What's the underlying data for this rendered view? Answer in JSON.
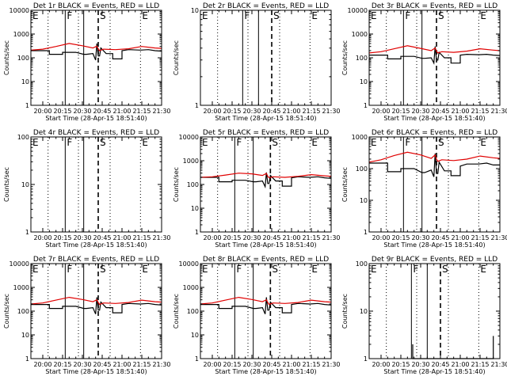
{
  "chart_data": [
    {
      "type": "line",
      "title": "Det 1r BLACK = Events, RED = LLD",
      "xlabel": "Start Time (28-Apr-15 18:51:40)",
      "ylabel": "Counts/sec",
      "yscale": "log",
      "ylim": [
        1,
        10000
      ],
      "xlim": [
        "19:51",
        "21:30"
      ],
      "x_ticks": [
        "20:00",
        "20:15",
        "20:30",
        "20:45",
        "21:00",
        "21:15",
        "21:30"
      ],
      "y_ticks": [
        "1",
        "10",
        "100",
        "1000",
        "10000"
      ],
      "phase_labels": [
        "E",
        "F",
        "S",
        "E"
      ],
      "solid_lines": [
        "20:17",
        "20:31"
      ],
      "dashed_lines": [
        "20:42"
      ],
      "dotted_lines": [
        "20:04",
        "20:27",
        "20:51",
        "21:14"
      ],
      "series": [
        {
          "name": "BLACK",
          "color": "#000000",
          "x": [
            "19:51",
            "20:00",
            "20:05",
            "20:05",
            "20:15",
            "20:15",
            "20:20",
            "20:25",
            "20:31",
            "20:33",
            "20:38",
            "20:40",
            "20:41",
            "20:42",
            "20:43",
            "20:44",
            "20:48",
            "20:51",
            "20:53",
            "20:53",
            "21:00",
            "21:00",
            "21:05",
            "21:14",
            "21:20",
            "21:25",
            "21:30"
          ],
          "y": [
            200,
            200,
            200,
            140,
            140,
            170,
            170,
            170,
            140,
            140,
            150,
            80,
            400,
            120,
            120,
            260,
            150,
            150,
            150,
            90,
            90,
            200,
            220,
            210,
            220,
            200,
            190
          ]
        },
        {
          "name": "RED",
          "color": "#e00000",
          "x": [
            "19:51",
            "20:00",
            "20:10",
            "20:20",
            "20:30",
            "20:38",
            "20:41",
            "20:42",
            "20:43",
            "20:46",
            "20:55",
            "21:05",
            "21:15",
            "21:25",
            "21:30"
          ],
          "y": [
            210,
            230,
            300,
            400,
            320,
            260,
            310,
            240,
            200,
            230,
            220,
            240,
            300,
            260,
            250
          ]
        }
      ]
    },
    {
      "type": "line",
      "title": "Det 2r BLACK = Events, RED = LLD",
      "xlabel": "Start Time (28-Apr-15 18:51:40)",
      "ylabel": "Counts/sec",
      "yscale": "log",
      "ylim": [
        1,
        10
      ],
      "xlim": [
        "19:51",
        "21:30"
      ],
      "x_ticks": [
        "20:00",
        "20:15",
        "20:30",
        "20:45",
        "21:00",
        "21:15",
        "21:30"
      ],
      "y_ticks": [
        "1",
        "10"
      ],
      "phase_labels": [
        "E",
        "F",
        "S",
        "E"
      ],
      "solid_lines": [
        "20:23",
        "20:35"
      ],
      "dashed_lines": [
        "20:45"
      ],
      "dotted_lines": [
        "20:04",
        "20:27",
        "20:51",
        "21:14"
      ],
      "series": []
    },
    {
      "type": "line",
      "title": "Det 3r BLACK = Events, RED = LLD",
      "xlabel": "Start Time (28-Apr-15 18:51:40)",
      "ylabel": "Counts/sec",
      "yscale": "log",
      "ylim": [
        1,
        10000
      ],
      "xlim": [
        "19:51",
        "21:30"
      ],
      "x_ticks": [
        "20:00",
        "20:15",
        "20:30",
        "20:45",
        "21:00",
        "21:15",
        "21:30"
      ],
      "y_ticks": [
        "1",
        "10",
        "100",
        "1000",
        "10000"
      ],
      "phase_labels": [
        "E",
        "F",
        "S",
        "E"
      ],
      "solid_lines": [
        "20:17",
        "20:31"
      ],
      "dashed_lines": [
        "20:42"
      ],
      "dotted_lines": [
        "20:04",
        "20:27",
        "20:51",
        "21:14"
      ],
      "series": [
        {
          "name": "BLACK",
          "color": "#000000",
          "x": [
            "19:51",
            "20:00",
            "20:05",
            "20:05",
            "20:15",
            "20:15",
            "20:20",
            "20:25",
            "20:31",
            "20:33",
            "20:38",
            "20:40",
            "20:41",
            "20:42",
            "20:43",
            "20:44",
            "20:48",
            "20:51",
            "20:53",
            "20:53",
            "21:00",
            "21:00",
            "21:05",
            "21:14",
            "21:20",
            "21:25",
            "21:30"
          ],
          "y": [
            130,
            130,
            130,
            90,
            90,
            115,
            115,
            115,
            95,
            95,
            100,
            60,
            300,
            80,
            80,
            170,
            100,
            100,
            100,
            60,
            60,
            130,
            140,
            135,
            140,
            130,
            125
          ]
        },
        {
          "name": "RED",
          "color": "#e00000",
          "x": [
            "19:51",
            "20:00",
            "20:10",
            "20:20",
            "20:30",
            "20:38",
            "20:41",
            "20:42",
            "20:43",
            "20:46",
            "20:55",
            "21:05",
            "21:15",
            "21:25",
            "21:30"
          ],
          "y": [
            160,
            180,
            240,
            320,
            250,
            200,
            260,
            190,
            160,
            180,
            170,
            190,
            240,
            210,
            200
          ]
        }
      ]
    },
    {
      "type": "line",
      "title": "Det 4r BLACK = Events, RED = LLD",
      "xlabel": "Start Time (28-Apr-15 18:51:40)",
      "ylabel": "Counts/sec",
      "yscale": "log",
      "ylim": [
        1,
        100
      ],
      "xlim": [
        "19:51",
        "21:30"
      ],
      "x_ticks": [
        "20:00",
        "20:15",
        "20:30",
        "20:45",
        "21:00",
        "21:15",
        "21:30"
      ],
      "y_ticks": [
        "1",
        "10",
        "100"
      ],
      "phase_labels": [
        "E",
        "F",
        "S",
        "E"
      ],
      "solid_lines": [
        "20:17",
        "20:31"
      ],
      "dashed_lines": [
        "20:42"
      ],
      "dotted_lines": [
        "20:04",
        "20:27",
        "20:51",
        "21:14"
      ],
      "series": []
    },
    {
      "type": "line",
      "title": "Det 5r BLACK = Events, RED = LLD",
      "xlabel": "Start Time (28-Apr-15 18:51:40)",
      "ylabel": "Counts/sec",
      "yscale": "log",
      "ylim": [
        1,
        10000
      ],
      "xlim": [
        "19:51",
        "21:30"
      ],
      "x_ticks": [
        "20:00",
        "20:15",
        "20:30",
        "20:45",
        "21:00",
        "21:15",
        "21:30"
      ],
      "y_ticks": [
        "1",
        "10",
        "100",
        "1000",
        "10000"
      ],
      "phase_labels": [
        "E",
        "F",
        "S",
        "E"
      ],
      "solid_lines": [
        "20:17",
        "20:31"
      ],
      "dashed_lines": [
        "20:44"
      ],
      "dotted_lines": [
        "20:04",
        "20:27",
        "20:51",
        "21:14"
      ],
      "series": [
        {
          "name": "BLACK",
          "color": "#000000",
          "x": [
            "19:51",
            "20:00",
            "20:05",
            "20:05",
            "20:15",
            "20:15",
            "20:20",
            "20:25",
            "20:31",
            "20:33",
            "20:38",
            "20:40",
            "20:41",
            "20:42",
            "20:43",
            "20:44",
            "20:48",
            "20:51",
            "20:53",
            "20:53",
            "21:00",
            "21:00",
            "21:05",
            "21:14",
            "21:20",
            "21:25",
            "21:30"
          ],
          "y": [
            200,
            200,
            200,
            130,
            130,
            150,
            150,
            150,
            130,
            130,
            140,
            80,
            320,
            110,
            110,
            240,
            140,
            140,
            140,
            85,
            85,
            190,
            210,
            200,
            210,
            190,
            180
          ]
        },
        {
          "name": "RED",
          "color": "#e00000",
          "x": [
            "19:51",
            "20:00",
            "20:10",
            "20:20",
            "20:30",
            "20:38",
            "20:41",
            "20:42",
            "20:43",
            "20:46",
            "20:55",
            "21:05",
            "21:15",
            "21:25",
            "21:30"
          ],
          "y": [
            200,
            210,
            250,
            300,
            280,
            240,
            290,
            220,
            190,
            210,
            200,
            220,
            260,
            230,
            220
          ]
        }
      ]
    },
    {
      "type": "line",
      "title": "Det 6r BLACK = Events, RED = LLD",
      "xlabel": "Start Time (28-Apr-15 18:51:40)",
      "ylabel": "Counts/sec",
      "yscale": "log",
      "ylim": [
        1,
        1000
      ],
      "xlim": [
        "19:51",
        "21:30"
      ],
      "x_ticks": [
        "20:00",
        "20:15",
        "20:30",
        "20:45",
        "21:00",
        "21:15",
        "21:30"
      ],
      "y_ticks": [
        "1",
        "10",
        "100",
        "1000"
      ],
      "phase_labels": [
        "E",
        "F",
        "S",
        "E"
      ],
      "solid_lines": [
        "20:17",
        "20:31"
      ],
      "dashed_lines": [
        "20:42"
      ],
      "dotted_lines": [
        "20:04",
        "20:27",
        "20:51",
        "21:14"
      ],
      "series": [
        {
          "name": "BLACK",
          "color": "#000000",
          "x": [
            "19:51",
            "20:00",
            "20:05",
            "20:05",
            "20:15",
            "20:15",
            "20:20",
            "20:25",
            "20:31",
            "20:33",
            "20:38",
            "20:40",
            "20:41",
            "20:42",
            "20:43",
            "20:44",
            "20:48",
            "20:51",
            "20:53",
            "20:53",
            "21:00",
            "21:00",
            "21:05",
            "21:14",
            "21:20",
            "21:25",
            "21:30"
          ],
          "y": [
            150,
            150,
            150,
            80,
            80,
            100,
            100,
            100,
            75,
            75,
            90,
            55,
            300,
            70,
            70,
            160,
            85,
            85,
            85,
            60,
            60,
            120,
            140,
            140,
            150,
            130,
            130
          ]
        },
        {
          "name": "RED",
          "color": "#e00000",
          "x": [
            "19:51",
            "20:00",
            "20:10",
            "20:20",
            "20:30",
            "20:38",
            "20:41",
            "20:42",
            "20:43",
            "20:46",
            "20:55",
            "21:05",
            "21:15",
            "21:25",
            "21:30"
          ],
          "y": [
            160,
            190,
            260,
            330,
            270,
            210,
            270,
            200,
            170,
            190,
            180,
            200,
            250,
            220,
            210
          ]
        }
      ]
    },
    {
      "type": "line",
      "title": "Det 7r BLACK = Events, RED = LLD",
      "xlabel": "Start Time (28-Apr-15 18:51:40)",
      "ylabel": "Counts/sec",
      "yscale": "log",
      "ylim": [
        1,
        10000
      ],
      "xlim": [
        "19:51",
        "21:30"
      ],
      "x_ticks": [
        "20:00",
        "20:15",
        "20:30",
        "20:45",
        "21:00",
        "21:15",
        "21:30"
      ],
      "y_ticks": [
        "1",
        "10",
        "100",
        "1000",
        "10000"
      ],
      "phase_labels": [
        "E",
        "F",
        "S",
        "E"
      ],
      "solid_lines": [
        "20:17",
        "20:31"
      ],
      "dashed_lines": [
        "20:42"
      ],
      "dotted_lines": [
        "20:04",
        "20:27",
        "20:51",
        "21:14"
      ],
      "series": [
        {
          "name": "BLACK",
          "color": "#000000",
          "x": [
            "19:51",
            "20:00",
            "20:05",
            "20:05",
            "20:15",
            "20:15",
            "20:20",
            "20:25",
            "20:31",
            "20:33",
            "20:38",
            "20:40",
            "20:41",
            "20:42",
            "20:43",
            "20:44",
            "20:48",
            "20:51",
            "20:53",
            "20:53",
            "21:00",
            "21:00",
            "21:05",
            "21:14",
            "21:20",
            "21:25",
            "21:30"
          ],
          "y": [
            190,
            190,
            190,
            130,
            130,
            160,
            160,
            160,
            130,
            130,
            140,
            75,
            380,
            110,
            110,
            240,
            140,
            140,
            140,
            85,
            85,
            190,
            210,
            200,
            210,
            190,
            180
          ]
        },
        {
          "name": "RED",
          "color": "#e00000",
          "x": [
            "19:51",
            "20:00",
            "20:10",
            "20:20",
            "20:30",
            "20:38",
            "20:41",
            "20:42",
            "20:43",
            "20:46",
            "20:55",
            "21:05",
            "21:15",
            "21:25",
            "21:30"
          ],
          "y": [
            200,
            220,
            290,
            380,
            310,
            250,
            300,
            230,
            190,
            220,
            210,
            230,
            290,
            250,
            240
          ]
        }
      ]
    },
    {
      "type": "line",
      "title": "Det 8r BLACK = Events, RED = LLD",
      "xlabel": "Start Time (28-Apr-15 18:51:40)",
      "ylabel": "Counts/sec",
      "yscale": "log",
      "ylim": [
        1,
        10000
      ],
      "xlim": [
        "19:51",
        "21:30"
      ],
      "x_ticks": [
        "20:00",
        "20:15",
        "20:30",
        "20:45",
        "21:00",
        "21:15",
        "21:30"
      ],
      "y_ticks": [
        "1",
        "10",
        "100",
        "1000",
        "10000"
      ],
      "phase_labels": [
        "E",
        "F",
        "S",
        "E"
      ],
      "solid_lines": [
        "20:17",
        "20:31"
      ],
      "dashed_lines": [
        "20:44"
      ],
      "dotted_lines": [
        "20:04",
        "20:27",
        "20:51",
        "21:14"
      ],
      "series": [
        {
          "name": "BLACK",
          "color": "#000000",
          "x": [
            "19:51",
            "20:00",
            "20:05",
            "20:05",
            "20:15",
            "20:15",
            "20:20",
            "20:25",
            "20:31",
            "20:33",
            "20:38",
            "20:40",
            "20:41",
            "20:42",
            "20:43",
            "20:44",
            "20:48",
            "20:51",
            "20:53",
            "20:53",
            "21:00",
            "21:00",
            "21:05",
            "21:14",
            "21:20",
            "21:25",
            "21:30"
          ],
          "y": [
            190,
            190,
            190,
            130,
            130,
            160,
            160,
            160,
            130,
            130,
            140,
            75,
            380,
            110,
            110,
            240,
            140,
            140,
            140,
            85,
            85,
            190,
            210,
            200,
            210,
            190,
            180
          ]
        },
        {
          "name": "RED",
          "color": "#e00000",
          "x": [
            "19:51",
            "20:00",
            "20:10",
            "20:20",
            "20:30",
            "20:38",
            "20:41",
            "20:42",
            "20:43",
            "20:46",
            "20:55",
            "21:05",
            "21:15",
            "21:25",
            "21:30"
          ],
          "y": [
            200,
            220,
            290,
            380,
            310,
            250,
            300,
            230,
            190,
            220,
            210,
            230,
            290,
            250,
            240
          ]
        }
      ]
    },
    {
      "type": "line",
      "title": "Det 9r BLACK = Events, RED = LLD",
      "xlabel": "Start Time (28-Apr-15 18:51:40)",
      "ylabel": "Counts/sec",
      "yscale": "log",
      "ylim": [
        1,
        100
      ],
      "xlim": [
        "19:51",
        "21:30"
      ],
      "x_ticks": [
        "20:00",
        "20:15",
        "20:30",
        "20:45",
        "21:00",
        "21:15",
        "21:30"
      ],
      "y_ticks": [
        "1",
        "10",
        "100"
      ],
      "phase_labels": [
        "E",
        "F",
        "S",
        "E"
      ],
      "solid_lines": [
        "20:23",
        "20:35"
      ],
      "dashed_lines": [
        "20:45"
      ],
      "dotted_lines": [
        "20:04",
        "20:27",
        "20:51",
        "21:14"
      ],
      "series": [
        {
          "name": "BLACK",
          "color": "#000000",
          "x": [
            "20:24",
            "20:24",
            "20:24",
            "21:25",
            "21:25",
            "21:25"
          ],
          "y": [
            1,
            2,
            1,
            1,
            3,
            1
          ]
        }
      ]
    }
  ]
}
